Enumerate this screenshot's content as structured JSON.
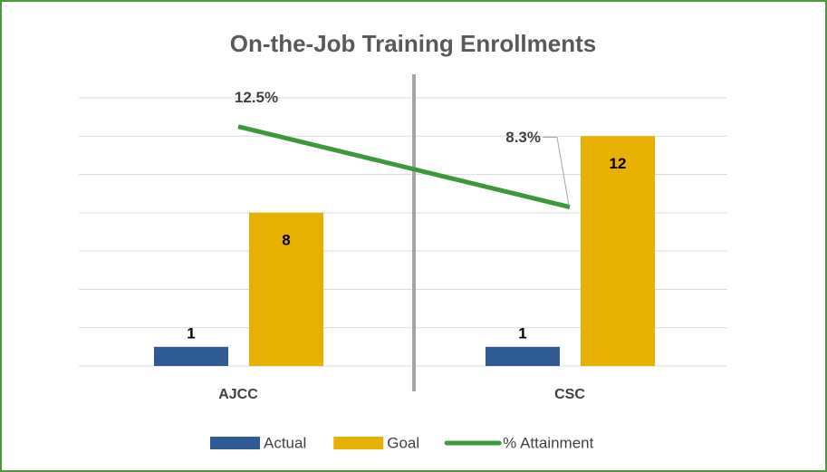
{
  "chart_data": {
    "type": "bar",
    "title": "On-the-Job Training Enrollments",
    "categories": [
      "AJCC",
      "CSC"
    ],
    "series": [
      {
        "name": "Actual",
        "color": "#2e5b93",
        "values": [
          1,
          1
        ]
      },
      {
        "name": "Goal",
        "color": "#e8b000",
        "values": [
          8,
          12
        ]
      },
      {
        "name": "% Attainment",
        "type": "line",
        "axis": "y2",
        "color": "#3a9a3a",
        "values": [
          12.5,
          8.3
        ],
        "value_labels": [
          "12.5%",
          "8.3%"
        ]
      }
    ],
    "ylim": [
      0,
      14
    ],
    "yticks": [
      0,
      2,
      4,
      6,
      8,
      10,
      12,
      14
    ],
    "y2lim": [
      0,
      14
    ],
    "grid": true,
    "legend": "bottom"
  }
}
